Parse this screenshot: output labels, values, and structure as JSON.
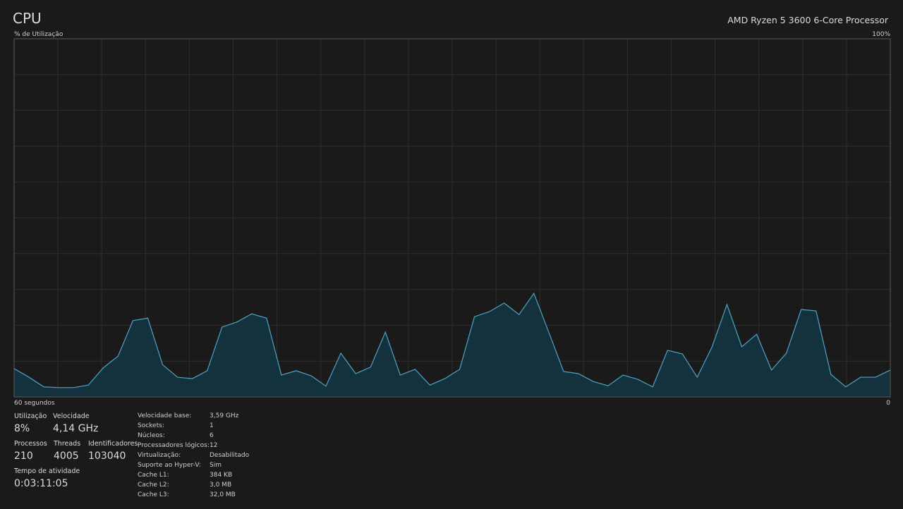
{
  "header": {
    "title": "CPU",
    "processor": "AMD Ryzen 5 3600 6-Core Processor"
  },
  "chart_data": {
    "type": "area",
    "y_label": "% de Utilização",
    "y_max_label": "100%",
    "x_start_label": "60 segundos",
    "x_end_label": "0",
    "ylim": [
      0,
      100
    ],
    "color": "#4ea3c6",
    "fill": "#13323d",
    "values": [
      7.9,
      5.5,
      2.8,
      2.6,
      2.6,
      3.3,
      8.1,
      11.4,
      21.3,
      22,
      9,
      5.5,
      5.1,
      7.3,
      19.5,
      20.9,
      23.2,
      22,
      6.1,
      7.3,
      5.9,
      3,
      12.2,
      6.5,
      8.3,
      18.1,
      6.1,
      7.7,
      3.3,
      5.1,
      7.7,
      22.4,
      23.8,
      26.2,
      23,
      28.9,
      18.1,
      7.1,
      6.5,
      4.3,
      3.1,
      6.1,
      4.9,
      2.8,
      13,
      12,
      5.5,
      14,
      25.8,
      14,
      17.5,
      7.5,
      12.2,
      24.4,
      24,
      6.3,
      2.8,
      5.5,
      5.5,
      7.5
    ]
  },
  "stats": [
    {
      "label": "Utilização",
      "value": "8%"
    },
    {
      "label": "Velocidade",
      "value": "4,14 GHz"
    },
    {
      "label": "Processos",
      "value": "210"
    },
    {
      "label": "Threads",
      "value": "4005"
    },
    {
      "label": "Identificadores",
      "value": "103040"
    },
    {
      "label": "Tempo de atividade",
      "value": "0:03:11:05"
    }
  ],
  "details": [
    [
      "Velocidade base:",
      "3,59 GHz"
    ],
    [
      "Sockets:",
      "1"
    ],
    [
      "Núcleos:",
      "6"
    ],
    [
      "Processadores lógicos:",
      "12"
    ],
    [
      "Virtualização:",
      "Desabilitado"
    ],
    [
      "Suporte ao Hyper-V:",
      "Sim"
    ],
    [
      "Cache L1:",
      "384 KB"
    ],
    [
      "Cache L2:",
      "3,0 MB"
    ],
    [
      "Cache L3:",
      "32,0 MB"
    ]
  ]
}
